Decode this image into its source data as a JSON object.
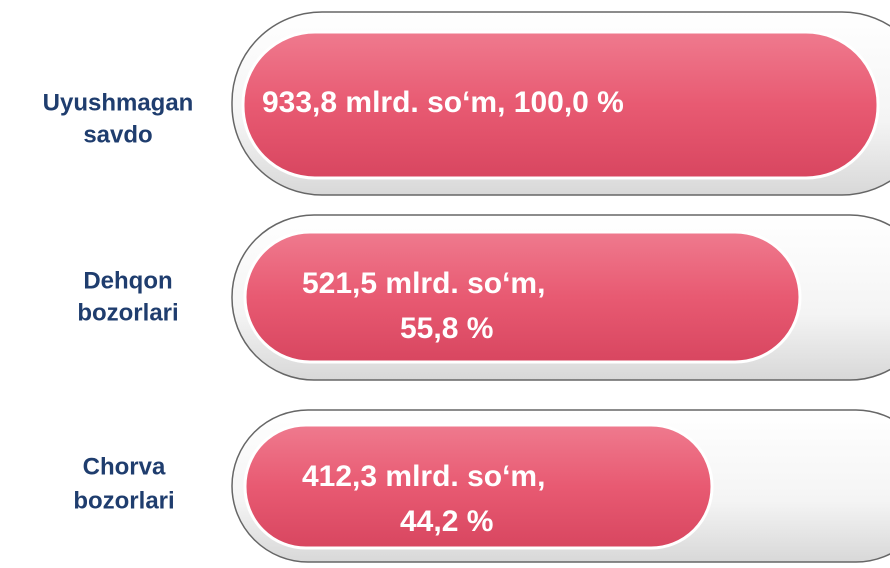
{
  "items": [
    {
      "label": [
        "Uyushmagan",
        "savdo"
      ],
      "text": [
        "933,8  mlrd. so‘m, 100,0 %"
      ]
    },
    {
      "label": [
        "Dehqon",
        "bozorlari"
      ],
      "text": [
        "521,5 mlrd. so‘m,",
        "55,8 %"
      ]
    },
    {
      "label": [
        "Chorva",
        "bozorlari"
      ],
      "text": [
        "412,3  mlrd. so‘m,",
        "44,2 %"
      ]
    }
  ]
}
